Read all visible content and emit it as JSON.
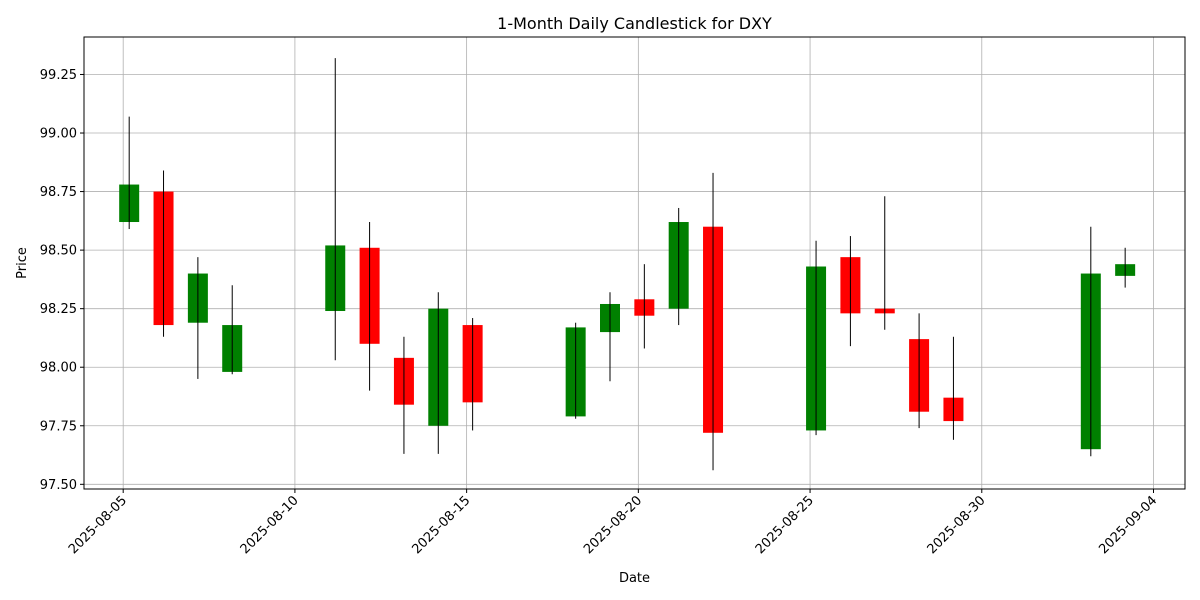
{
  "chart_data": {
    "type": "candlestick",
    "title": "1-Month Daily Candlestick for DXY",
    "xlabel": "Date",
    "ylabel": "Price",
    "ylim": [
      97.48,
      99.41
    ],
    "xlim": [
      "2025-08-03",
      "2025-09-04"
    ],
    "yticks": [
      97.5,
      97.75,
      98.0,
      98.25,
      98.5,
      98.75,
      99.0,
      99.25
    ],
    "ytick_labels": [
      "97.50",
      "97.75",
      "98.00",
      "98.25",
      "98.50",
      "98.75",
      "99.00",
      "99.25"
    ],
    "xticks": [
      "2025-08-05",
      "2025-08-10",
      "2025-08-15",
      "2025-08-20",
      "2025-08-25",
      "2025-08-30",
      "2025-09-04"
    ],
    "grid": true,
    "colors": {
      "up": "#008000",
      "down": "#ff0000",
      "wick": "#000000",
      "grid": "#b0b0b0"
    },
    "candles": [
      {
        "date": "2025-08-05",
        "open": 98.62,
        "high": 99.07,
        "low": 98.59,
        "close": 98.78
      },
      {
        "date": "2025-08-06",
        "open": 98.75,
        "high": 98.84,
        "low": 98.13,
        "close": 98.18
      },
      {
        "date": "2025-08-07",
        "open": 98.19,
        "high": 98.47,
        "low": 97.95,
        "close": 98.4
      },
      {
        "date": "2025-08-08",
        "open": 97.98,
        "high": 98.35,
        "low": 97.97,
        "close": 98.18
      },
      {
        "date": "2025-08-11",
        "open": 98.24,
        "high": 99.32,
        "low": 98.03,
        "close": 98.52
      },
      {
        "date": "2025-08-12",
        "open": 98.51,
        "high": 98.62,
        "low": 97.9,
        "close": 98.1
      },
      {
        "date": "2025-08-13",
        "open": 98.04,
        "high": 98.13,
        "low": 97.63,
        "close": 97.84
      },
      {
        "date": "2025-08-14",
        "open": 97.75,
        "high": 98.32,
        "low": 97.63,
        "close": 98.25
      },
      {
        "date": "2025-08-15",
        "open": 98.18,
        "high": 98.21,
        "low": 97.73,
        "close": 97.85
      },
      {
        "date": "2025-08-18",
        "open": 97.79,
        "high": 98.19,
        "low": 97.78,
        "close": 98.17
      },
      {
        "date": "2025-08-19",
        "open": 98.15,
        "high": 98.32,
        "low": 97.94,
        "close": 98.27
      },
      {
        "date": "2025-08-20",
        "open": 98.29,
        "high": 98.44,
        "low": 98.08,
        "close": 98.22
      },
      {
        "date": "2025-08-21",
        "open": 98.25,
        "high": 98.68,
        "low": 98.18,
        "close": 98.62
      },
      {
        "date": "2025-08-22",
        "open": 98.6,
        "high": 98.83,
        "low": 97.56,
        "close": 97.72
      },
      {
        "date": "2025-08-25",
        "open": 97.73,
        "high": 98.54,
        "low": 97.71,
        "close": 98.43
      },
      {
        "date": "2025-08-26",
        "open": 98.47,
        "high": 98.56,
        "low": 98.09,
        "close": 98.23
      },
      {
        "date": "2025-08-27",
        "open": 98.25,
        "high": 98.73,
        "low": 98.16,
        "close": 98.23
      },
      {
        "date": "2025-08-28",
        "open": 98.12,
        "high": 98.23,
        "low": 97.74,
        "close": 97.81
      },
      {
        "date": "2025-08-29",
        "open": 97.87,
        "high": 98.13,
        "low": 97.69,
        "close": 97.77
      },
      {
        "date": "2025-09-02",
        "open": 97.65,
        "high": 98.6,
        "low": 97.62,
        "close": 98.4
      },
      {
        "date": "2025-09-03",
        "open": 98.39,
        "high": 98.51,
        "low": 98.34,
        "close": 98.44
      }
    ]
  }
}
